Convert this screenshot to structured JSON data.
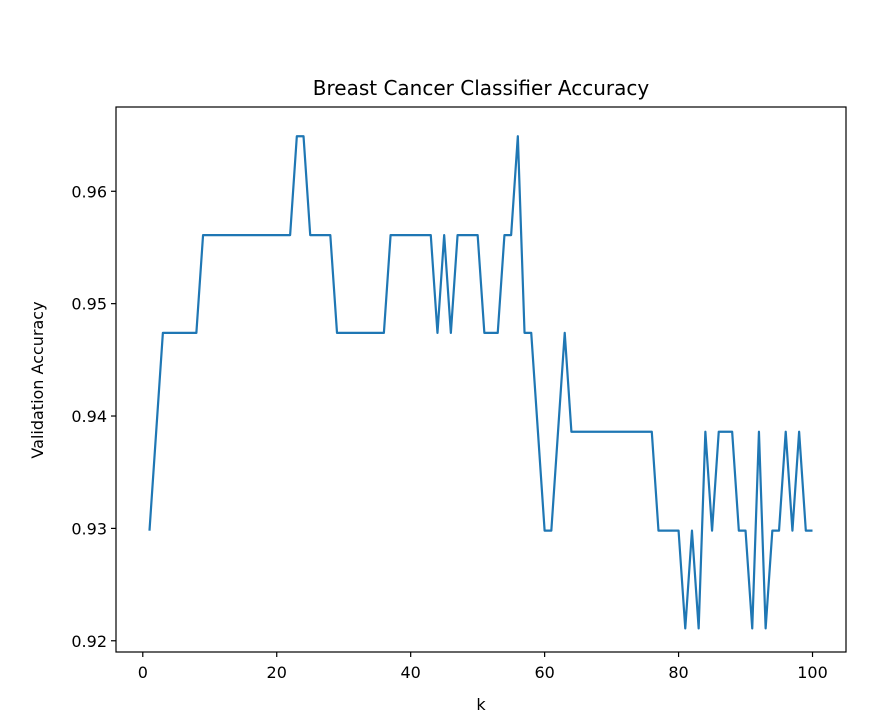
{
  "chart_data": {
    "type": "line",
    "title": "Breast Cancer Classifier Accuracy",
    "xlabel": "k",
    "ylabel": "Validation Accuracy",
    "xlim": [
      -4,
      105
    ],
    "ylim": [
      0.919,
      0.9675
    ],
    "xticks": [
      0,
      20,
      40,
      60,
      80,
      100
    ],
    "xtick_labels": [
      "0",
      "20",
      "40",
      "60",
      "80",
      "100"
    ],
    "yticks": [
      0.92,
      0.93,
      0.94,
      0.95,
      0.96
    ],
    "ytick_labels": [
      "0.92",
      "0.93",
      "0.94",
      "0.95",
      "0.96"
    ],
    "grid": false,
    "color": "#1f77b4",
    "series": [
      {
        "x": [
          1,
          2,
          3,
          4,
          5,
          6,
          7,
          8,
          9,
          10,
          11,
          12,
          13,
          14,
          15,
          16,
          17,
          18,
          19,
          20,
          21,
          22,
          23,
          24,
          25,
          26,
          27,
          28,
          29,
          30,
          31,
          32,
          33,
          34,
          35,
          36,
          37,
          38,
          39,
          40,
          41,
          42,
          43,
          44,
          45,
          46,
          47,
          48,
          49,
          50,
          51,
          52,
          53,
          54,
          55,
          56,
          57,
          58,
          59,
          60,
          61,
          62,
          63,
          64,
          65,
          66,
          67,
          68,
          69,
          70,
          71,
          72,
          73,
          74,
          75,
          76,
          77,
          78,
          79,
          80,
          81,
          82,
          83,
          84,
          85,
          86,
          87,
          88,
          89,
          90,
          91,
          92,
          93,
          94,
          95,
          96,
          97,
          98,
          99,
          100
        ],
        "values": [
          0.9298,
          0.9386,
          0.9474,
          0.9474,
          0.9474,
          0.9474,
          0.9474,
          0.9474,
          0.9561,
          0.9561,
          0.9561,
          0.9561,
          0.9561,
          0.9561,
          0.9561,
          0.9561,
          0.9561,
          0.9561,
          0.9561,
          0.9561,
          0.9561,
          0.9561,
          0.9649,
          0.9649,
          0.9561,
          0.9561,
          0.9561,
          0.9561,
          0.9474,
          0.9474,
          0.9474,
          0.9474,
          0.9474,
          0.9474,
          0.9474,
          0.9474,
          0.9561,
          0.9561,
          0.9561,
          0.9561,
          0.9561,
          0.9561,
          0.9561,
          0.9474,
          0.9561,
          0.9474,
          0.9561,
          0.9561,
          0.9561,
          0.9561,
          0.9474,
          0.9474,
          0.9474,
          0.9561,
          0.9561,
          0.9649,
          0.9474,
          0.9474,
          0.9386,
          0.9298,
          0.9298,
          0.9386,
          0.9474,
          0.9386,
          0.9386,
          0.9386,
          0.9386,
          0.9386,
          0.9386,
          0.9386,
          0.9386,
          0.9386,
          0.9386,
          0.9386,
          0.9386,
          0.9386,
          0.9298,
          0.9298,
          0.9298,
          0.9298,
          0.9211,
          0.9298,
          0.9211,
          0.9386,
          0.9298,
          0.9386,
          0.9386,
          0.9386,
          0.9298,
          0.9298,
          0.9211,
          0.9386,
          0.9211,
          0.9298,
          0.9298,
          0.9386,
          0.9298,
          0.9386,
          0.9298,
          0.9298
        ]
      }
    ]
  }
}
